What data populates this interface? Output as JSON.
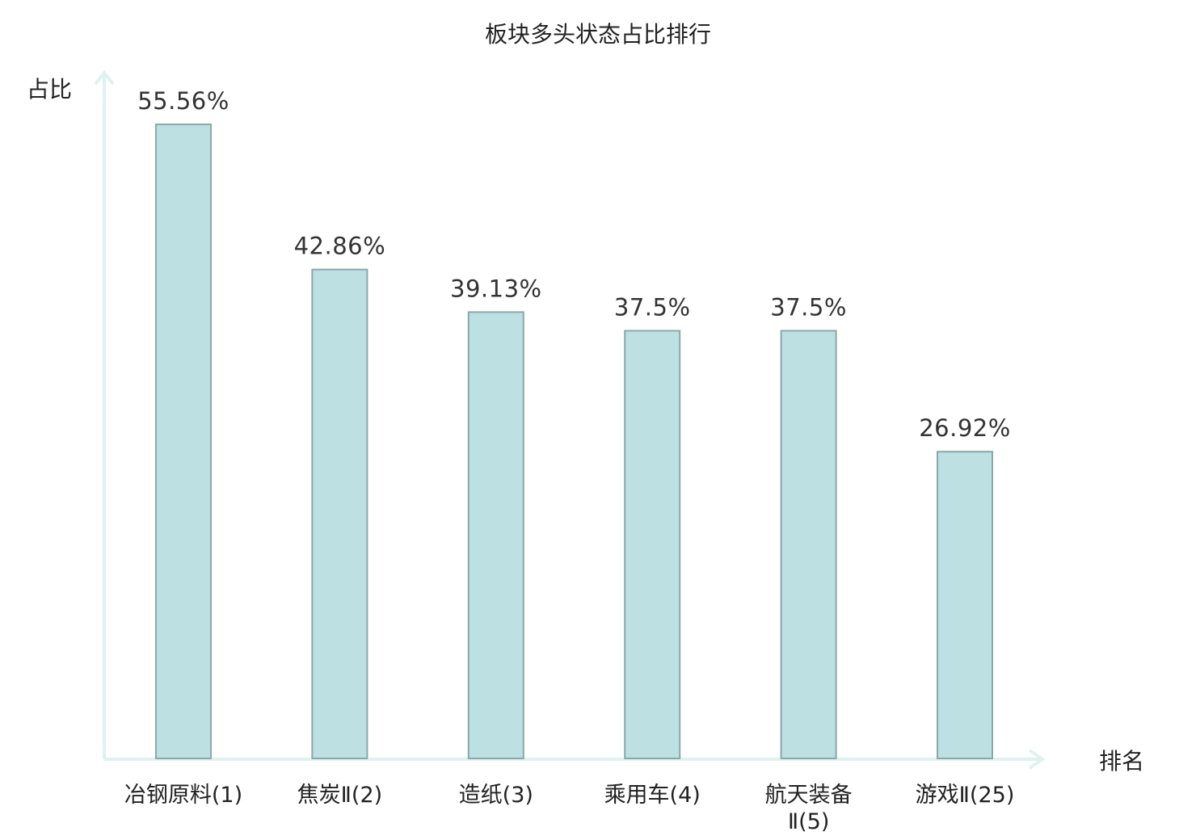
{
  "chart_data": {
    "type": "bar",
    "title": "板块多头状态占比排行",
    "ylabel": "占比",
    "xlabel": "排名",
    "categories": [
      {
        "lines": [
          "冶钢原料(1)"
        ],
        "color": "#222222"
      },
      {
        "lines": [
          "焦炭Ⅱ(2)"
        ],
        "color": "#222222"
      },
      {
        "lines": [
          "造纸(3)"
        ],
        "color": "#222222"
      },
      {
        "lines": [
          "乘用车(4)"
        ],
        "color": "#222222"
      },
      {
        "lines": [
          "航天装备",
          "Ⅱ(5)"
        ],
        "color": "#222222"
      },
      {
        "lines": [
          "游戏Ⅱ(25)"
        ],
        "color": "#dd1111"
      }
    ],
    "values": [
      55.56,
      42.86,
      39.13,
      37.5,
      37.5,
      26.92
    ],
    "value_labels": [
      "55.56%",
      "42.86%",
      "39.13%",
      "37.5%",
      "37.5%",
      "26.92%"
    ],
    "ylim": [
      0,
      60
    ],
    "grid": false,
    "colors": {
      "bar_fill": "#bde0e3",
      "bar_stroke": "#8aa8aa",
      "axis": "#e0f2ef",
      "highlight": "#dd1111"
    }
  }
}
